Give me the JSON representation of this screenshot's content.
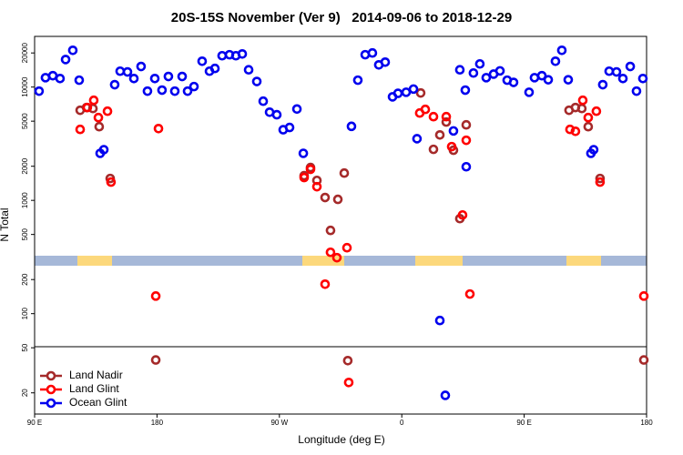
{
  "chart_data": {
    "type": "scatter",
    "title": "20S-15S November (Ver 9)   2014-09-06 to 2018-12-29",
    "x_label": "Longitude (deg E)",
    "y_label": "N Total",
    "xlim": [
      90,
      540
    ],
    "ylim": [
      13,
      28000
    ],
    "yscale": "log",
    "xticks": [
      {
        "value": 90,
        "label": "90 E"
      },
      180,
      {
        "value": 270,
        "label": "90 W"
      },
      {
        "value": 360,
        "label": "0"
      },
      {
        "value": 450,
        "label": "90 E"
      },
      {
        "value": 540,
        "label": "180"
      }
    ],
    "yticks": [
      20,
      50,
      100,
      200,
      500,
      1000,
      2000,
      5000,
      10000,
      20000
    ],
    "legend": "lower left",
    "series": [
      {
        "name": "Land Nadir",
        "color": "#a52a2a",
        "x": [
          123.5,
          128.2,
          132.9,
          137.5,
          145.6,
          179.1,
          288.2,
          292.9,
          297.6,
          303.6,
          313,
          307.6,
          317.7,
          320.3,
          373.9,
          383.3,
          388,
          392.7,
          398,
          402.7,
          407.4,
          483,
          487.7,
          492.4,
          497.1,
          505.8,
          538
        ],
        "values": [
          6240,
          6600,
          6470,
          4470,
          1560,
          39,
          1650,
          1950,
          1500,
          1060,
          1020,
          543,
          1740,
          38.5,
          8870,
          2820,
          3780,
          4910,
          2770,
          690,
          4640,
          6240,
          6600,
          6470,
          4470,
          1560,
          39
        ]
      },
      {
        "name": "Land Glint",
        "color": "#ff0000",
        "x": [
          123.5,
          128.8,
          133.5,
          136.9,
          143.6,
          146.2,
          179.1,
          181.1,
          288.2,
          292.9,
          297.6,
          303.6,
          307.6,
          312.3,
          319.7,
          321,
          373.2,
          377.3,
          383.3,
          392.7,
          396.7,
          404.7,
          407.4,
          410.1,
          483.7,
          487.7,
          493.1,
          497.1,
          503.1,
          505.8,
          538
        ],
        "values": [
          4230,
          6600,
          7640,
          5380,
          6120,
          1450,
          143,
          4300,
          1590,
          1880,
          1320,
          182,
          348,
          312,
          382,
          24.7,
          5900,
          6350,
          5480,
          5480,
          2980,
          743,
          3390,
          149,
          4230,
          4070,
          7640,
          5380,
          6120,
          1450,
          143
        ]
      },
      {
        "name": "Ocean Glint",
        "color": "#0000ee",
        "x": [
          93.3,
          98,
          103.4,
          108.7,
          112.8,
          118.1,
          122.8,
          138.2,
          140.9,
          148.9,
          152.9,
          158.3,
          163,
          168.3,
          173,
          178.4,
          183.7,
          188.4,
          193.1,
          198.5,
          202.5,
          207.2,
          213.2,
          218.6,
          222.6,
          227.9,
          233.3,
          238,
          242.7,
          247.4,
          253.4,
          258.1,
          262.8,
          268.1,
          272.8,
          277.5,
          282.9,
          287.6,
          323,
          327.7,
          333.1,
          338.4,
          343.1,
          347.8,
          353.2,
          357.2,
          363.2,
          368.6,
          371.2,
          388,
          392,
          398,
          402.7,
          406.7,
          407.4,
          412.7,
          417.4,
          422.1,
          427.5,
          432.2,
          437.5,
          442.2,
          453.6,
          457.6,
          463,
          467.7,
          473,
          477.7,
          482.4,
          499.1,
          501.1,
          507.8,
          512.5,
          517.9,
          522.6,
          528,
          532.6,
          537.3
        ],
        "values": [
          9200,
          12100,
          12600,
          11900,
          17500,
          21100,
          11500,
          2600,
          2800,
          10500,
          13800,
          13600,
          11900,
          15200,
          9200,
          11900,
          9400,
          12400,
          9200,
          12400,
          9200,
          10100,
          16900,
          13800,
          14600,
          18900,
          19300,
          18900,
          19600,
          14200,
          11200,
          7500,
          6000,
          5700,
          4200,
          4400,
          6400,
          2600,
          4500,
          11500,
          19300,
          20000,
          15700,
          16600,
          8200,
          8800,
          9000,
          9600,
          3500,
          87,
          19,
          4100,
          14200,
          9400,
          1980,
          13300,
          16000,
          12100,
          13000,
          13900,
          11500,
          11000,
          9000,
          12100,
          12600,
          11600,
          16900,
          21100,
          11600,
          2600,
          2800,
          10500,
          13800,
          13600,
          11900,
          15200,
          9200,
          11900
        ]
      }
    ]
  }
}
